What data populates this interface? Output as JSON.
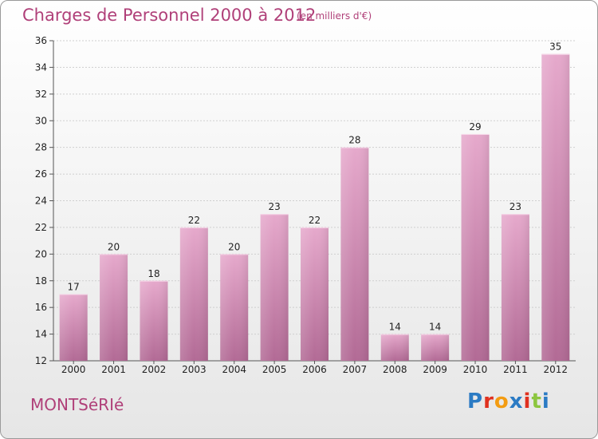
{
  "header": {
    "title": "Charges de Personnel 2000 à 2012",
    "subtitle": "(en milliers d'€)"
  },
  "footer": {
    "commune": "MONTSéRIé",
    "logo_text": "Proxiti",
    "logo_colors": [
      "#2b7bc4",
      "#e0311f",
      "#f39c12",
      "#2b7bc4",
      "#e0311f",
      "#8cc63f",
      "#2b7bc4"
    ]
  },
  "chart_data": {
    "type": "bar",
    "title": "Charges de Personnel 2000 à 2012",
    "subtitle": "(en milliers d'€)",
    "categories": [
      "2000",
      "2001",
      "2002",
      "2003",
      "2004",
      "2005",
      "2006",
      "2007",
      "2008",
      "2009",
      "2010",
      "2011",
      "2012"
    ],
    "values": [
      17,
      20,
      18,
      22,
      20,
      23,
      22,
      28,
      14,
      14,
      29,
      23,
      35
    ],
    "ylim": [
      12,
      36
    ],
    "yticks": [
      12,
      14,
      16,
      18,
      20,
      22,
      24,
      26,
      28,
      30,
      32,
      34,
      36
    ],
    "grid": true,
    "bar_color": "#c76f9f",
    "legend": "none"
  }
}
